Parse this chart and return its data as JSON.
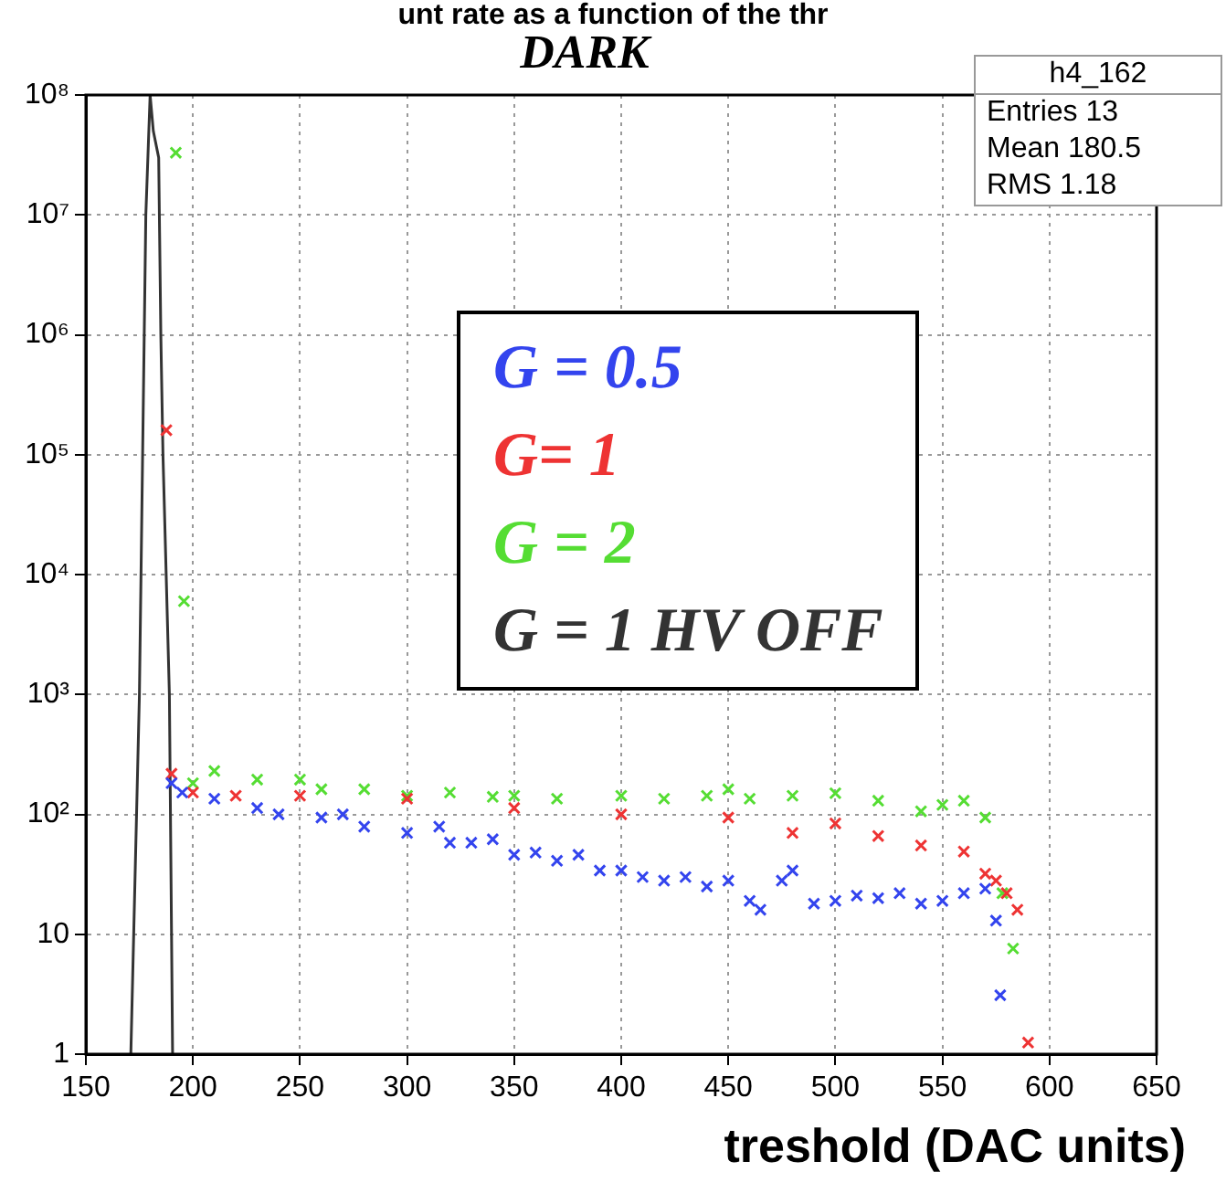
{
  "chart_data": {
    "type": "scatter",
    "title": "DARK",
    "xlabel": "treshold (DAC units)",
    "annotations": [
      "unt rate as a function of the thr",
      "h4_162",
      "Entries 13",
      "Mean 180.5",
      "RMS 1.18"
    ],
    "xlim": [
      150,
      650
    ],
    "xticks": [
      150,
      200,
      250,
      300,
      350,
      400,
      450,
      500,
      550,
      600,
      650
    ],
    "ylim": [
      1,
      100000000
    ],
    "yticks": [
      1,
      10,
      {
        "value": 100,
        "label": "10²"
      },
      {
        "value": 1000,
        "label": "10³"
      },
      {
        "value": 10000,
        "label": "10⁴"
      },
      {
        "value": 100000,
        "label": "10⁵"
      },
      {
        "value": 1000000,
        "label": "10⁶"
      },
      {
        "value": 10000000,
        "label": "10⁷"
      },
      {
        "value": 100000000,
        "label": "10⁸"
      }
    ],
    "log": "y",
    "grid": true,
    "legend": "top",
    "marker": "cross",
    "series": [
      {
        "name": "G = 0.5",
        "color": "#3344ee",
        "x": [
          190,
          195,
          210,
          230,
          240,
          260,
          270,
          280,
          300,
          315,
          320,
          330,
          340,
          350,
          360,
          370,
          380,
          390,
          400,
          410,
          420,
          430,
          440,
          450,
          460,
          465,
          475,
          480,
          490,
          500,
          510,
          520,
          530,
          540,
          550,
          560,
          570,
          575,
          577
        ],
        "values": [
          182,
          152,
          135,
          113,
          100,
          94,
          100,
          79,
          70,
          79,
          58,
          58,
          62,
          46,
          48,
          41,
          46,
          34,
          34,
          30,
          28,
          30,
          25,
          28,
          19,
          16,
          28,
          34,
          18,
          19,
          21,
          20,
          22,
          18,
          19,
          22,
          24,
          13,
          3.1
        ]
      },
      {
        "name": "G= 1",
        "color": "#ee3333",
        "x": [
          187.6,
          190,
          200,
          220,
          250,
          300,
          350,
          400,
          450,
          480,
          500,
          520,
          540,
          560,
          570,
          575,
          580,
          585,
          590
        ],
        "values": [
          160000,
          218,
          152,
          143,
          143,
          135,
          113,
          100,
          94,
          70,
          84,
          66,
          55,
          49,
          32,
          28,
          22,
          16,
          1.25
        ]
      },
      {
        "name": "G = 2",
        "color": "#55dd33",
        "x": [
          192,
          195.8,
          200,
          210,
          230,
          250,
          260,
          280,
          300,
          320,
          340,
          350,
          370,
          400,
          420,
          440,
          450,
          460,
          480,
          500,
          520,
          540,
          550,
          560,
          570,
          578,
          583
        ],
        "values": [
          33000000,
          6000,
          182,
          230,
          195,
          195,
          162,
          162,
          143,
          152,
          140,
          143,
          135,
          143,
          135,
          143,
          162,
          135,
          143,
          150,
          130,
          106,
          120,
          130,
          94,
          22,
          7.6
        ]
      },
      {
        "name": "G = 1 HV OFF",
        "type": "line",
        "marker": "none",
        "color": "#333333",
        "x": [
          171,
          175,
          178,
          180,
          181.5,
          184,
          185,
          186,
          189,
          190.5
        ],
        "values": [
          1,
          1000,
          10000000,
          100000000,
          50000000,
          30000000,
          1000000,
          100000,
          1000,
          1
        ]
      }
    ]
  }
}
